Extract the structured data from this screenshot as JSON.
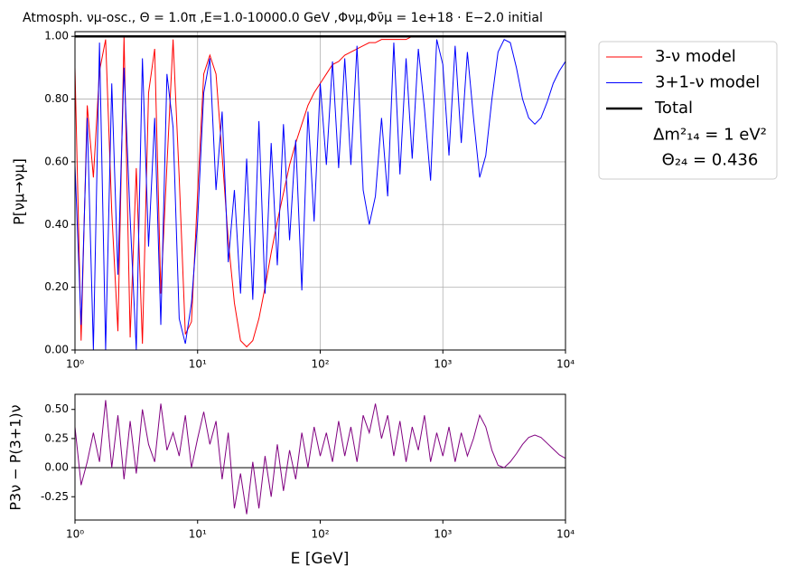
{
  "chart_data": [
    {
      "type": "line",
      "title": "Atmosph. νμ-osc., Θ = 1.0π ,E=1.0-10000.0 GeV  ,Φνμ,Φν̄μ = 1e+18 · E−2.0 initial",
      "y_label": "P[νμ→νμ]",
      "log_x": true,
      "grid": true,
      "xlim": [
        1,
        10000
      ],
      "xticks": [
        {
          "value": 1,
          "label": "10⁰"
        },
        {
          "value": 10,
          "label": "10¹"
        },
        {
          "value": 100,
          "label": "10²"
        },
        {
          "value": 1000,
          "label": "10³"
        },
        {
          "value": 10000,
          "label": "10⁴"
        }
      ],
      "ylim": [
        0,
        1.015
      ],
      "yticks": [
        {
          "value": 0,
          "label": "0.00"
        },
        {
          "value": 0.2,
          "label": "0.20"
        },
        {
          "value": 0.4,
          "label": "0.40"
        },
        {
          "value": 0.6,
          "label": "0.60"
        },
        {
          "value": 0.8,
          "label": "0.80"
        },
        {
          "value": 1,
          "label": "1.00"
        }
      ],
      "x": [
        1,
        1.122,
        1.259,
        1.413,
        1.585,
        1.778,
        1.995,
        2.239,
        2.512,
        2.818,
        3.162,
        3.548,
        3.981,
        4.467,
        5.012,
        5.623,
        6.31,
        7.079,
        7.943,
        8.913,
        10,
        11.22,
        12.59,
        14.13,
        15.85,
        17.78,
        19.95,
        22.39,
        25.12,
        28.18,
        31.62,
        35.48,
        39.81,
        44.67,
        50.12,
        56.23,
        63.1,
        70.79,
        79.43,
        89.13,
        100,
        112.2,
        125.9,
        141.3,
        158.5,
        177.8,
        199.5,
        223.9,
        251.2,
        281.8,
        316.2,
        354.8,
        398.1,
        446.7,
        501.2,
        562.3,
        631,
        707.9,
        794.3,
        891.3,
        1000,
        1122,
        1259,
        1413,
        1585,
        1778,
        1995,
        2239,
        2512,
        2818,
        3162,
        3548,
        3981,
        4467,
        5012,
        5623,
        6310,
        7079,
        7943,
        8913,
        10000
      ],
      "series": [
        {
          "name": "3-ν model",
          "color": "#ff0000",
          "width": 1,
          "values": [
            0.9,
            0.03,
            0.78,
            0.55,
            0.89,
            0.99,
            0.44,
            0.06,
            1.0,
            0.04,
            0.58,
            0.02,
            0.82,
            0.96,
            0.18,
            0.59,
            0.99,
            0.55,
            0.05,
            0.09,
            0.5,
            0.88,
            0.94,
            0.88,
            0.62,
            0.35,
            0.15,
            0.03,
            0.01,
            0.03,
            0.1,
            0.2,
            0.31,
            0.41,
            0.5,
            0.59,
            0.66,
            0.72,
            0.78,
            0.82,
            0.85,
            0.88,
            0.91,
            0.92,
            0.94,
            0.95,
            0.96,
            0.97,
            0.98,
            0.98,
            0.99,
            0.99,
            0.99,
            0.99,
            0.99,
            1.0,
            1.0,
            1.0,
            1.0,
            1.0,
            1.0,
            1.0,
            1.0,
            1.0,
            1.0,
            1.0,
            1.0,
            1.0,
            1.0,
            1.0,
            1.0,
            1.0,
            1.0,
            1.0,
            1.0,
            1.0,
            1.0,
            1.0,
            1.0,
            1.0,
            1.0
          ]
        },
        {
          "name": "3+1-ν model",
          "color": "#0000ff",
          "width": 1,
          "values": [
            0.59,
            0.08,
            0.74,
            0.0,
            0.98,
            0.0,
            0.85,
            0.24,
            0.9,
            0.42,
            0.0,
            0.93,
            0.33,
            0.74,
            0.08,
            0.88,
            0.71,
            0.1,
            0.02,
            0.15,
            0.41,
            0.82,
            0.93,
            0.51,
            0.76,
            0.28,
            0.51,
            0.18,
            0.61,
            0.16,
            0.73,
            0.18,
            0.66,
            0.27,
            0.72,
            0.35,
            0.67,
            0.19,
            0.76,
            0.41,
            0.85,
            0.59,
            0.92,
            0.58,
            0.93,
            0.59,
            0.97,
            0.51,
            0.4,
            0.49,
            0.74,
            0.49,
            0.98,
            0.56,
            0.93,
            0.61,
            0.96,
            0.77,
            0.54,
            0.99,
            0.91,
            0.62,
            0.97,
            0.66,
            0.95,
            0.74,
            0.55,
            0.62,
            0.8,
            0.95,
            0.99,
            0.98,
            0.9,
            0.8,
            0.74,
            0.72,
            0.74,
            0.79,
            0.85,
            0.89,
            0.92
          ]
        },
        {
          "name": "Total",
          "color": "#000000",
          "width": 2.5,
          "x": [
            1,
            10000
          ],
          "values": [
            1,
            1
          ]
        }
      ],
      "legend_notes": [
        "Δm²₁₄ = 1 eV²",
        "Θ₂₄ = 0.436"
      ]
    },
    {
      "type": "line",
      "x_label": "E [GeV]",
      "y_label": "P3ν − P(3+1)ν",
      "log_x": true,
      "grid": false,
      "xlim": [
        1,
        10000
      ],
      "xticks": [
        {
          "value": 1,
          "label": "10⁰"
        },
        {
          "value": 10,
          "label": "10¹"
        },
        {
          "value": 100,
          "label": "10²"
        },
        {
          "value": 1000,
          "label": "10³"
        },
        {
          "value": 10000,
          "label": "10⁴"
        }
      ],
      "ylim": [
        -0.45,
        0.63
      ],
      "yticks": [
        {
          "value": -0.25,
          "label": "-0.25"
        },
        {
          "value": 0,
          "label": "0.00"
        },
        {
          "value": 0.25,
          "label": "0.25"
        },
        {
          "value": 0.5,
          "label": "0.50"
        }
      ],
      "hline": 0,
      "x": [
        1,
        1.122,
        1.259,
        1.413,
        1.585,
        1.778,
        1.995,
        2.239,
        2.512,
        2.818,
        3.162,
        3.548,
        3.981,
        4.467,
        5.012,
        5.623,
        6.31,
        7.079,
        7.943,
        8.913,
        10,
        11.22,
        12.59,
        14.13,
        15.85,
        17.78,
        19.95,
        22.39,
        25.12,
        28.18,
        31.62,
        35.48,
        39.81,
        44.67,
        50.12,
        56.23,
        63.1,
        70.79,
        79.43,
        89.13,
        100,
        112.2,
        125.9,
        141.3,
        158.5,
        177.8,
        199.5,
        223.9,
        251.2,
        281.8,
        316.2,
        354.8,
        398.1,
        446.7,
        501.2,
        562.3,
        631,
        707.9,
        794.3,
        891.3,
        1000,
        1122,
        1259,
        1413,
        1585,
        1778,
        1995,
        2239,
        2512,
        2818,
        3162,
        3548,
        3981,
        4467,
        5012,
        5623,
        6310,
        7079,
        7943,
        8913,
        10000
      ],
      "series": [
        {
          "color": "#800080",
          "width": 1,
          "values": [
            0.35,
            -0.15,
            0.05,
            0.3,
            0.05,
            0.58,
            0.0,
            0.45,
            -0.1,
            0.4,
            -0.05,
            0.5,
            0.2,
            0.05,
            0.55,
            0.15,
            0.3,
            0.1,
            0.45,
            0.0,
            0.25,
            0.48,
            0.2,
            0.4,
            -0.1,
            0.3,
            -0.35,
            -0.05,
            -0.4,
            0.05,
            -0.35,
            0.1,
            -0.25,
            0.2,
            -0.2,
            0.15,
            -0.1,
            0.3,
            0.0,
            0.35,
            0.1,
            0.3,
            0.05,
            0.4,
            0.1,
            0.35,
            0.05,
            0.45,
            0.3,
            0.55,
            0.25,
            0.45,
            0.1,
            0.4,
            0.05,
            0.35,
            0.15,
            0.45,
            0.05,
            0.3,
            0.1,
            0.35,
            0.05,
            0.3,
            0.1,
            0.25,
            0.45,
            0.35,
            0.15,
            0.02,
            0.0,
            0.05,
            0.12,
            0.2,
            0.26,
            0.28,
            0.26,
            0.21,
            0.16,
            0.11,
            0.08
          ]
        }
      ]
    }
  ]
}
